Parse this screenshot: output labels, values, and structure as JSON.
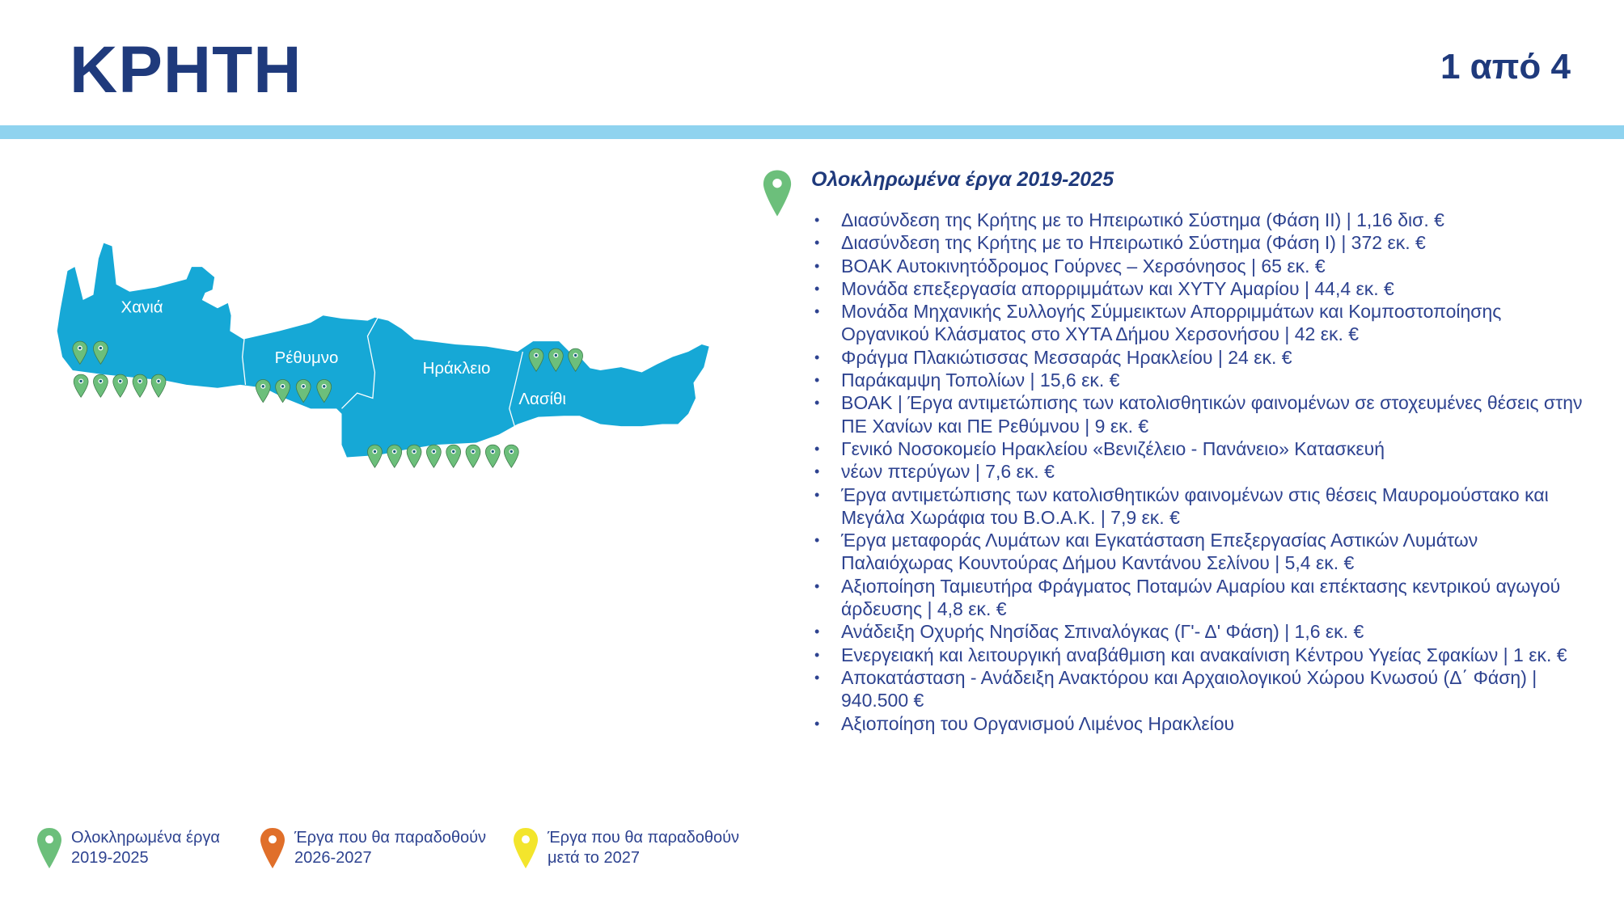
{
  "header": {
    "title": "ΚΡΗΤΗ",
    "page_indicator": "1 από 4"
  },
  "colors": {
    "map_fill": "#16a8d6",
    "green_pin": "#6cbf7b",
    "orange_pin": "#e06f2a",
    "yellow_pin": "#f3e52c",
    "top_bar": "#8fd3ef",
    "text": "#2e4390"
  },
  "map": {
    "regions": [
      {
        "name": "Χανιά",
        "completed_pins": 7
      },
      {
        "name": "Ρέθυμνο",
        "completed_pins": 4
      },
      {
        "name": "Ηράκλειο",
        "completed_pins": 8
      },
      {
        "name": "Λασίθι",
        "completed_pins": 3
      }
    ]
  },
  "section": {
    "icon": "map-pin-green",
    "heading": "Ολοκληρωμένα έργα 2019-2025",
    "items": [
      "Διασύνδεση της Κρήτης με το Ηπειρωτικό Σύστημα (Φάση ΙΙ) | 1,16 δισ. €",
      "Διασύνδεση της Κρήτης με το Ηπειρωτικό Σύστημα (Φάση Ι) | 372 εκ. €",
      "ΒΟΑΚ Αυτοκινητόδρομος Γούρνες – Χερσόνησος | 65 εκ. €",
      "Μονάδα επεξεργασία απορριμμάτων και ΧΥΤΥ Αμαρίου | 44,4 εκ. €",
      "Μονάδα Μηχανικής Συλλογής Σύμμεικτων Απορριμμάτων και Κομποστοποίησης Οργανικού Κλάσματος στο ΧΥΤΑ Δήμου Χερσονήσου | 42 εκ. €",
      "Φράγμα Πλακιώτισσας Μεσσαράς Ηρακλείου | 24 εκ. €",
      "Παράκαμψη Τοπολίων | 15,6 εκ. €",
      "ΒΟΑΚ | Έργα αντιμετώπισης των κατολισθητικών φαινομένων σε στοχευμένες θέσεις στην ΠΕ Χανίων και ΠΕ Ρεθύμνου | 9 εκ. €",
      "Γενικό Νοσοκομείο Ηρακλείου «Βενιζέλειο - Πανάνειο» Κατασκευή",
      "νέων πτερύγων | 7,6 εκ. €",
      "Έργα αντιμετώπισης των κατολισθητικών φαινομένων στις θέσεις Μαυρομούστακο και Μεγάλα Χωράφια του Β.Ο.Α.Κ. | 7,9 εκ. €",
      "Έργα μεταφοράς Λυμάτων και Εγκατάσταση Επεξεργασίας Αστικών Λυμάτων Παλαιόχωρας Κουντούρας Δήμου Καντάνου Σελίνου | 5,4 εκ. €",
      "Αξιοποίηση Ταμιευτήρα Φράγματος Ποταμών Αμαρίου και επέκτασης κεντρικού αγωγού άρδευσης | 4,8 εκ. €",
      "Ανάδειξη Οχυρής Νησίδας Σπιναλόγκας (Γ'- Δ' Φάση) | 1,6 εκ. €",
      "Ενεργειακή και λειτουργική αναβάθμιση και ανακαίνιση Κέντρου Υγείας Σφακίων | 1 εκ. €",
      "Αποκατάσταση - Ανάδειξη Ανακτόρου και Αρχαιολογικού Χώρου Κνωσού (Δ΄ Φάση) | 940.500 €",
      "Αξιοποίηση του Οργανισμού Λιμένος Ηρακλείου"
    ]
  },
  "legend": [
    {
      "icon": "map-pin-green",
      "label": "Ολοκληρωμένα έργα\n2019-2025"
    },
    {
      "icon": "map-pin-orange",
      "label": "Έργα που θα παραδοθούν\n2026-2027"
    },
    {
      "icon": "map-pin-yellow",
      "label": "Έργα που θα παραδοθούν\nμετά το 2027"
    }
  ]
}
